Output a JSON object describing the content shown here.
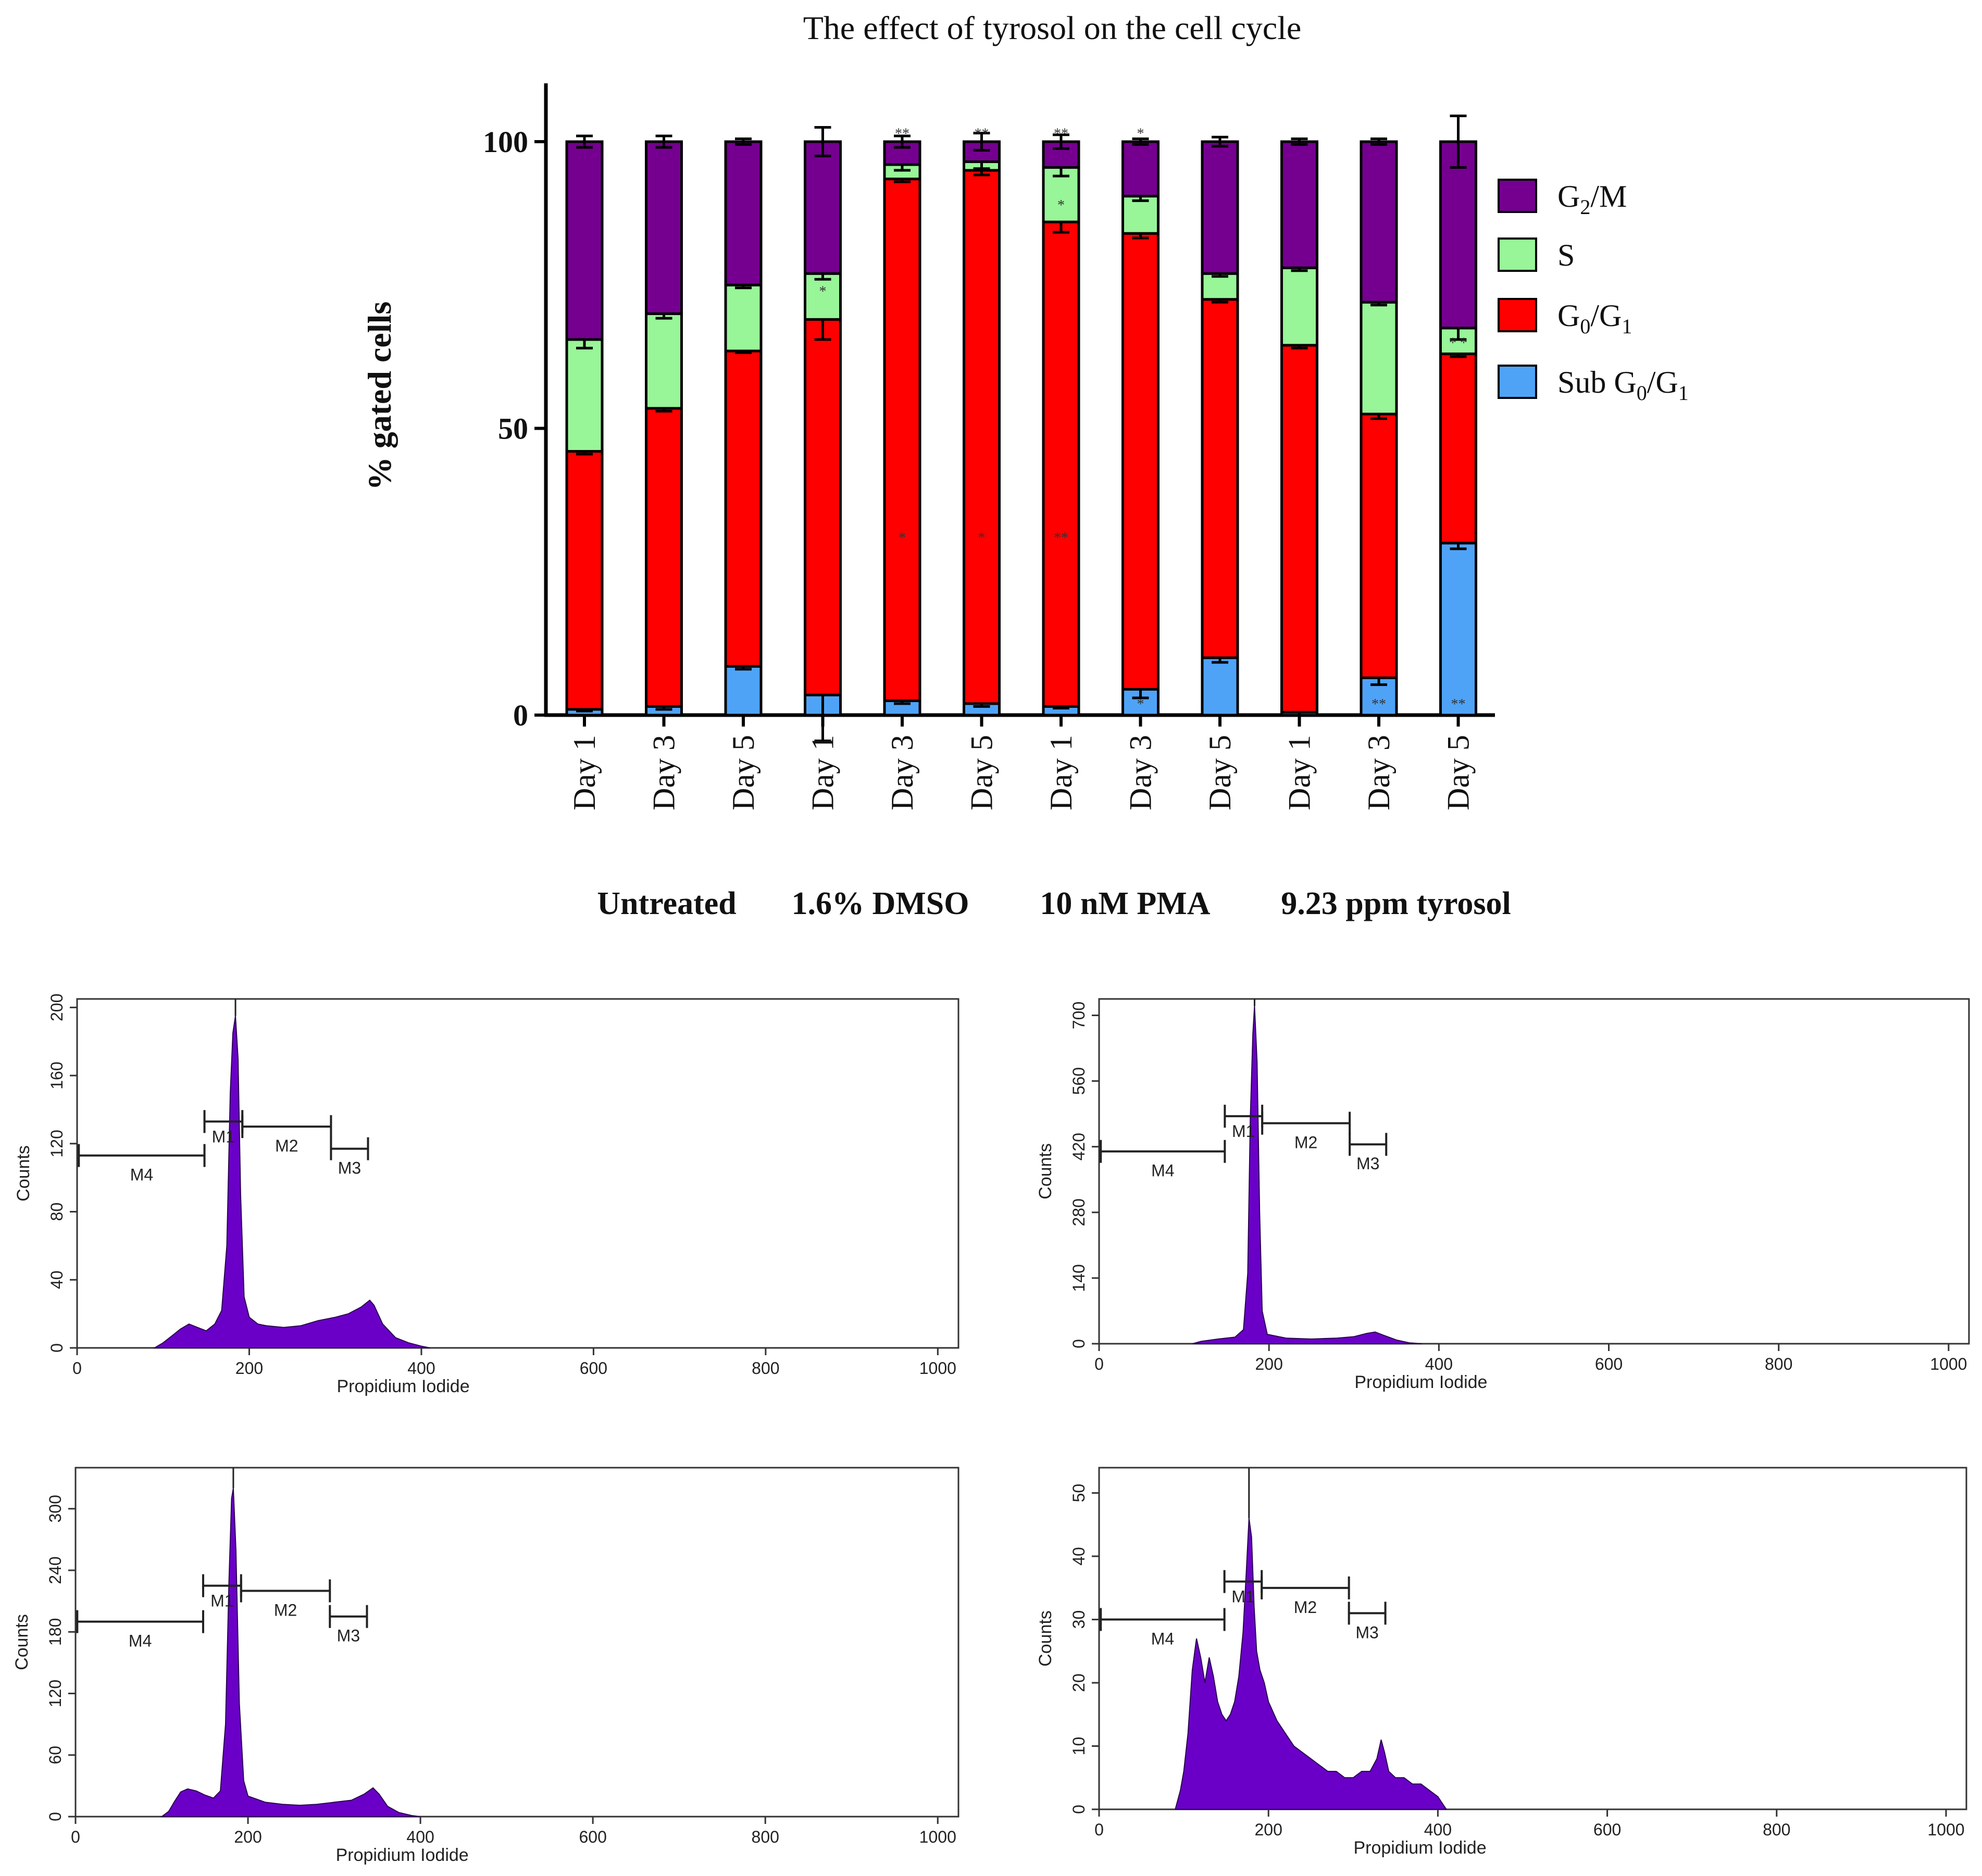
{
  "chart_data": [
    {
      "type": "bar",
      "stacked": true,
      "title": "The effect of tyrosol on the cell cycle",
      "ylabel": "% gated cells",
      "ylim": [
        0,
        110
      ],
      "yticks": [
        0,
        50,
        100
      ],
      "categories": [
        "Day 1",
        "Day 3",
        "Day 5",
        "Day 1",
        "Day 3",
        "Day 5",
        "Day 1",
        "Day 3",
        "Day 5",
        "Day 1",
        "Day 3",
        "Day 5"
      ],
      "groups": [
        {
          "label": "Untreated",
          "start": 0,
          "end": 2
        },
        {
          "label": "1.6% DMSO",
          "start": 3,
          "end": 5
        },
        {
          "label": "10 nM PMA",
          "start": 6,
          "end": 8
        },
        {
          "label": "9.23 ppm tyrosol",
          "start": 9,
          "end": 11
        }
      ],
      "series": [
        {
          "name": "Sub G0/G1",
          "label_html": "Sub G<tspan dy='14' font-size='40'>0</tspan><tspan dy='-14'>/G</tspan><tspan dy='14' font-size='40'>1</tspan>",
          "color": "#4fa3f7",
          "values": [
            1,
            1.5,
            8.5,
            3.5,
            2.5,
            2,
            1.5,
            4.5,
            10,
            0.5,
            6.5,
            30
          ],
          "errors": [
            0.3,
            0.5,
            0.5,
            8,
            0.5,
            0.5,
            0.3,
            1.5,
            0.8,
            0.5,
            1.2,
            1
          ]
        },
        {
          "name": "G0/G1",
          "label_html": "G<tspan dy='14' font-size='40'>0</tspan><tspan dy='-14'>/G</tspan><tspan dy='14' font-size='40'>1</tspan>",
          "color": "#ff0000",
          "values": [
            45,
            52,
            55,
            65.5,
            91,
            93,
            84.5,
            79.5,
            62.5,
            64,
            46,
            33
          ],
          "errors": [
            0.5,
            0.5,
            0.3,
            3.5,
            0.5,
            0.8,
            1.8,
            0.8,
            0.5,
            0.5,
            0.8,
            0.5
          ]
        },
        {
          "name": "S",
          "label_html": "S",
          "color": "#98f598",
          "values": [
            19.5,
            16.5,
            11.5,
            8,
            2.5,
            1.5,
            9.5,
            6.5,
            4.5,
            13.5,
            19.5,
            4.5
          ],
          "errors": [
            1.5,
            0.8,
            0.5,
            1,
            1,
            1.2,
            1.5,
            0.8,
            0.5,
            0.5,
            0.5,
            2
          ]
        },
        {
          "name": "G2/M",
          "label_html": "G<tspan dy='14' font-size='40'>2</tspan><tspan dy='-14'>/M</tspan>",
          "color": "#750090",
          "values": [
            34.5,
            30,
            25,
            23,
            4,
            3.5,
            4.5,
            9.5,
            23,
            22,
            28,
            32.5
          ],
          "errors": [
            1,
            1,
            0.5,
            2.5,
            1,
            1.5,
            1.2,
            0.5,
            0.8,
            0.5,
            0.5,
            4.5
          ]
        }
      ],
      "annotations": [
        {
          "bar": 3,
          "y": 74,
          "text": "*"
        },
        {
          "bar": 4,
          "y": 101.5,
          "text": "**"
        },
        {
          "bar": 4,
          "y": 31,
          "text": "*"
        },
        {
          "bar": 5,
          "y": 101.5,
          "text": "**"
        },
        {
          "bar": 5,
          "y": 31,
          "text": "*"
        },
        {
          "bar": 6,
          "y": 101.5,
          "text": "**"
        },
        {
          "bar": 6,
          "y": 89,
          "text": "*"
        },
        {
          "bar": 6,
          "y": 31,
          "text": "**"
        },
        {
          "bar": 7,
          "y": 101.5,
          "text": "*"
        },
        {
          "bar": 7,
          "y": 2,
          "text": "*"
        },
        {
          "bar": 10,
          "y": 2,
          "text": "**"
        },
        {
          "bar": 11,
          "y": 65,
          "text": "* *"
        },
        {
          "bar": 11,
          "y": 2,
          "text": "**"
        }
      ]
    },
    {
      "type": "area",
      "panel": "histogram-top-left",
      "xlabel": "Propidium Iodide",
      "ylabel": "Counts",
      "xlim": [
        0,
        1024
      ],
      "ylim": [
        0,
        205
      ],
      "xticks": [
        0,
        200,
        400,
        600,
        800,
        1000
      ],
      "yticks": [
        0,
        40,
        80,
        120,
        160,
        200
      ],
      "color": "#6a00c8",
      "points": [
        [
          90,
          0
        ],
        [
          100,
          3
        ],
        [
          110,
          7
        ],
        [
          120,
          11
        ],
        [
          130,
          14
        ],
        [
          140,
          12
        ],
        [
          150,
          10
        ],
        [
          160,
          14
        ],
        [
          168,
          22
        ],
        [
          174,
          60
        ],
        [
          178,
          150
        ],
        [
          181,
          185
        ],
        [
          184,
          195
        ],
        [
          187,
          170
        ],
        [
          190,
          90
        ],
        [
          194,
          30
        ],
        [
          200,
          18
        ],
        [
          210,
          14
        ],
        [
          220,
          13
        ],
        [
          240,
          12
        ],
        [
          260,
          13
        ],
        [
          280,
          16
        ],
        [
          300,
          18
        ],
        [
          315,
          20
        ],
        [
          330,
          24
        ],
        [
          340,
          28
        ],
        [
          345,
          25
        ],
        [
          355,
          14
        ],
        [
          370,
          6
        ],
        [
          385,
          3
        ],
        [
          400,
          1
        ],
        [
          410,
          0
        ]
      ],
      "markers": [
        {
          "label": "M4",
          "start": 2,
          "end": 148,
          "y": 113
        },
        {
          "label": "M1",
          "start": 148,
          "end": 192,
          "y": 133
        },
        {
          "label": "M2",
          "start": 192,
          "end": 295,
          "y": 130
        },
        {
          "label": "M3",
          "start": 295,
          "end": 338,
          "y": 117
        }
      ]
    },
    {
      "type": "area",
      "panel": "histogram-top-right",
      "xlabel": "Propidium Iodide",
      "ylabel": "Counts",
      "xlim": [
        0,
        1024
      ],
      "ylim": [
        0,
        735
      ],
      "xticks": [
        0,
        200,
        400,
        600,
        800,
        1000
      ],
      "yticks": [
        0,
        140,
        280,
        420,
        560,
        700
      ],
      "color": "#6a00c8",
      "points": [
        [
          110,
          0
        ],
        [
          120,
          5
        ],
        [
          140,
          10
        ],
        [
          160,
          14
        ],
        [
          170,
          30
        ],
        [
          175,
          150
        ],
        [
          178,
          480
        ],
        [
          181,
          660
        ],
        [
          183,
          720
        ],
        [
          186,
          600
        ],
        [
          189,
          280
        ],
        [
          192,
          70
        ],
        [
          198,
          20
        ],
        [
          220,
          12
        ],
        [
          250,
          10
        ],
        [
          280,
          12
        ],
        [
          300,
          15
        ],
        [
          315,
          22
        ],
        [
          325,
          25
        ],
        [
          335,
          18
        ],
        [
          350,
          8
        ],
        [
          365,
          2
        ],
        [
          380,
          0
        ]
      ],
      "markers": [
        {
          "label": "M4",
          "start": 2,
          "end": 148,
          "y": 410
        },
        {
          "label": "M1",
          "start": 148,
          "end": 192,
          "y": 485
        },
        {
          "label": "M2",
          "start": 192,
          "end": 295,
          "y": 470
        },
        {
          "label": "M3",
          "start": 295,
          "end": 338,
          "y": 425
        }
      ]
    },
    {
      "type": "area",
      "panel": "histogram-bottom-left",
      "xlabel": "Propidium Iodide",
      "ylabel": "Counts",
      "xlim": [
        0,
        1024
      ],
      "ylim": [
        0,
        340
      ],
      "xticks": [
        0,
        200,
        400,
        600,
        800,
        1000
      ],
      "yticks": [
        0,
        60,
        120,
        180,
        240,
        300
      ],
      "color": "#6a00c8",
      "points": [
        [
          100,
          0
        ],
        [
          108,
          5
        ],
        [
          115,
          15
        ],
        [
          122,
          24
        ],
        [
          130,
          27
        ],
        [
          140,
          25
        ],
        [
          150,
          21
        ],
        [
          160,
          18
        ],
        [
          168,
          25
        ],
        [
          174,
          90
        ],
        [
          178,
          230
        ],
        [
          181,
          310
        ],
        [
          183,
          320
        ],
        [
          186,
          260
        ],
        [
          190,
          110
        ],
        [
          195,
          35
        ],
        [
          200,
          20
        ],
        [
          220,
          14
        ],
        [
          240,
          12
        ],
        [
          260,
          11
        ],
        [
          280,
          12
        ],
        [
          300,
          14
        ],
        [
          320,
          16
        ],
        [
          335,
          22
        ],
        [
          345,
          28
        ],
        [
          352,
          22
        ],
        [
          362,
          10
        ],
        [
          375,
          4
        ],
        [
          390,
          1
        ],
        [
          400,
          0
        ]
      ],
      "markers": [
        {
          "label": "M4",
          "start": 2,
          "end": 148,
          "y": 190
        },
        {
          "label": "M1",
          "start": 148,
          "end": 192,
          "y": 225
        },
        {
          "label": "M2",
          "start": 192,
          "end": 295,
          "y": 220
        },
        {
          "label": "M3",
          "start": 295,
          "end": 338,
          "y": 195
        }
      ]
    },
    {
      "type": "area",
      "panel": "histogram-bottom-right",
      "xlabel": "Propidium Iodide",
      "ylabel": "Counts",
      "xlim": [
        0,
        1024
      ],
      "ylim": [
        0,
        54
      ],
      "xticks": [
        0,
        200,
        400,
        600,
        800,
        1000
      ],
      "yticks": [
        0,
        10,
        20,
        30,
        40,
        50
      ],
      "color": "#6a00c8",
      "points": [
        [
          90,
          0
        ],
        [
          96,
          3
        ],
        [
          100,
          6
        ],
        [
          105,
          12
        ],
        [
          110,
          22
        ],
        [
          115,
          27
        ],
        [
          120,
          24
        ],
        [
          125,
          20
        ],
        [
          130,
          24
        ],
        [
          135,
          21
        ],
        [
          140,
          17
        ],
        [
          145,
          15
        ],
        [
          150,
          14
        ],
        [
          155,
          15
        ],
        [
          160,
          17
        ],
        [
          165,
          21
        ],
        [
          170,
          28
        ],
        [
          174,
          38
        ],
        [
          177,
          46
        ],
        [
          180,
          43
        ],
        [
          183,
          32
        ],
        [
          186,
          25
        ],
        [
          190,
          22
        ],
        [
          195,
          20
        ],
        [
          200,
          17
        ],
        [
          210,
          14
        ],
        [
          220,
          12
        ],
        [
          230,
          10
        ],
        [
          240,
          9
        ],
        [
          250,
          8
        ],
        [
          260,
          7
        ],
        [
          270,
          6
        ],
        [
          280,
          6
        ],
        [
          290,
          5
        ],
        [
          300,
          5
        ],
        [
          310,
          6
        ],
        [
          320,
          6
        ],
        [
          328,
          8
        ],
        [
          333,
          11
        ],
        [
          337,
          9
        ],
        [
          342,
          6
        ],
        [
          350,
          5
        ],
        [
          360,
          5
        ],
        [
          370,
          4
        ],
        [
          380,
          4
        ],
        [
          390,
          3
        ],
        [
          400,
          2
        ],
        [
          405,
          1
        ],
        [
          410,
          0
        ]
      ],
      "markers": [
        {
          "label": "M4",
          "start": 2,
          "end": 148,
          "y": 30
        },
        {
          "label": "M1",
          "start": 148,
          "end": 192,
          "y": 36
        },
        {
          "label": "M2",
          "start": 192,
          "end": 295,
          "y": 35
        },
        {
          "label": "M3",
          "start": 295,
          "end": 338,
          "y": 31
        }
      ]
    }
  ]
}
